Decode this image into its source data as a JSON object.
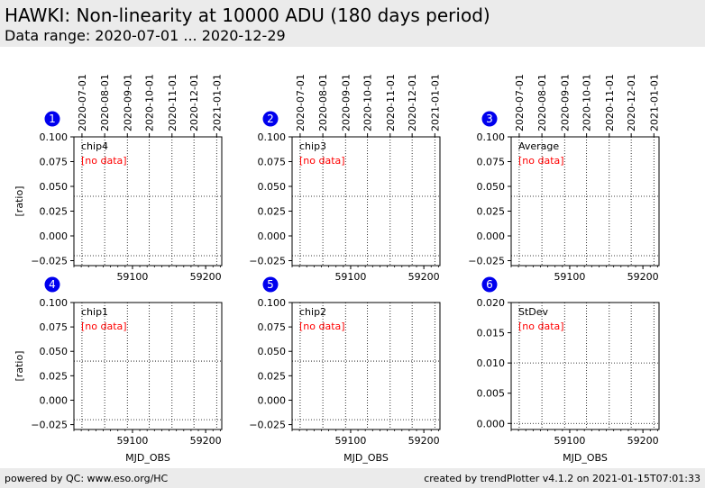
{
  "header": {
    "title": "HAWKI: Non-linearity at 10000 ADU (180 days period)",
    "subtitle": "Data range: 2020-07-01 ... 2020-12-29"
  },
  "footer": {
    "left": "powered by QC: www.eso.org/HC",
    "right": "created by trendPlotter v4.1.2 on 2021-01-15T07:01:33"
  },
  "colors": {
    "badge": "#0000ee",
    "no_data": "#ff0000",
    "header_bg": "#ebebeb"
  },
  "chart_data": [
    {
      "type": "scatter",
      "badge": "1",
      "label": "chip4",
      "note": "[no data]",
      "ylabel": "[ratio]",
      "xlabel": "",
      "date_ticks": [
        "2020-07-01",
        "2020-08-01",
        "2020-09-01",
        "2020-10-01",
        "2020-11-01",
        "2020-12-01",
        "2021-01-01"
      ],
      "xticks": [
        59100,
        59200
      ],
      "xlim": [
        59020,
        59222
      ],
      "yticks": [
        0.1,
        0.075,
        0.05,
        0.025,
        0.0,
        -0.025
      ],
      "ytick_labels": [
        "0.100",
        "0.075",
        "0.050",
        "0.025",
        "0.000",
        "−0.025"
      ],
      "ylim": [
        -0.03,
        0.1
      ],
      "hlines": [
        0.04,
        -0.02
      ],
      "series": []
    },
    {
      "type": "scatter",
      "badge": "2",
      "label": "chip3",
      "note": "[no data]",
      "ylabel": "",
      "xlabel": "",
      "date_ticks": [
        "2020-07-01",
        "2020-08-01",
        "2020-09-01",
        "2020-10-01",
        "2020-11-01",
        "2020-12-01",
        "2021-01-01"
      ],
      "xticks": [
        59100,
        59200
      ],
      "xlim": [
        59020,
        59222
      ],
      "yticks": [
        0.1,
        0.075,
        0.05,
        0.025,
        0.0,
        -0.025
      ],
      "ytick_labels": [
        "0.100",
        "0.075",
        "0.050",
        "0.025",
        "0.000",
        "−0.025"
      ],
      "ylim": [
        -0.03,
        0.1
      ],
      "hlines": [
        0.04,
        -0.02
      ],
      "series": []
    },
    {
      "type": "scatter",
      "badge": "3",
      "label": "Average",
      "note": "[no data]",
      "ylabel": "",
      "xlabel": "",
      "date_ticks": [
        "2020-07-01",
        "2020-08-01",
        "2020-09-01",
        "2020-10-01",
        "2020-11-01",
        "2020-12-01",
        "2021-01-01"
      ],
      "xticks": [
        59100,
        59200
      ],
      "xlim": [
        59020,
        59222
      ],
      "yticks": [
        0.1,
        0.075,
        0.05,
        0.025,
        0.0,
        -0.025
      ],
      "ytick_labels": [
        "0.100",
        "0.075",
        "0.050",
        "0.025",
        "0.000",
        "−0.025"
      ],
      "ylim": [
        -0.03,
        0.1
      ],
      "hlines": [
        0.04,
        -0.02
      ],
      "series": []
    },
    {
      "type": "scatter",
      "badge": "4",
      "label": "chip1",
      "note": "[no data]",
      "ylabel": "[ratio]",
      "xlabel": "MJD_OBS",
      "date_ticks": [],
      "xticks": [
        59100,
        59200
      ],
      "xlim": [
        59020,
        59222
      ],
      "yticks": [
        0.1,
        0.075,
        0.05,
        0.025,
        0.0,
        -0.025
      ],
      "ytick_labels": [
        "0.100",
        "0.075",
        "0.050",
        "0.025",
        "0.000",
        "−0.025"
      ],
      "ylim": [
        -0.03,
        0.1
      ],
      "hlines": [
        0.04,
        -0.02
      ],
      "series": []
    },
    {
      "type": "scatter",
      "badge": "5",
      "label": "chip2",
      "note": "[no data]",
      "ylabel": "",
      "xlabel": "MJD_OBS",
      "date_ticks": [],
      "xticks": [
        59100,
        59200
      ],
      "xlim": [
        59020,
        59222
      ],
      "yticks": [
        0.1,
        0.075,
        0.05,
        0.025,
        0.0,
        -0.025
      ],
      "ytick_labels": [
        "0.100",
        "0.075",
        "0.050",
        "0.025",
        "0.000",
        "−0.025"
      ],
      "ylim": [
        -0.03,
        0.1
      ],
      "hlines": [
        0.04,
        -0.02
      ],
      "series": []
    },
    {
      "type": "scatter",
      "badge": "6",
      "label": "StDev",
      "note": "[no data]",
      "ylabel": "",
      "xlabel": "MJD_OBS",
      "date_ticks": [],
      "xticks": [
        59100,
        59200
      ],
      "xlim": [
        59020,
        59222
      ],
      "yticks": [
        0.02,
        0.015,
        0.01,
        0.005,
        0.0
      ],
      "ytick_labels": [
        "0.020",
        "0.015",
        "0.010",
        "0.005",
        "0.000"
      ],
      "ylim": [
        -0.001,
        0.02
      ],
      "hlines": [
        0.01,
        0.0
      ],
      "series": []
    }
  ]
}
